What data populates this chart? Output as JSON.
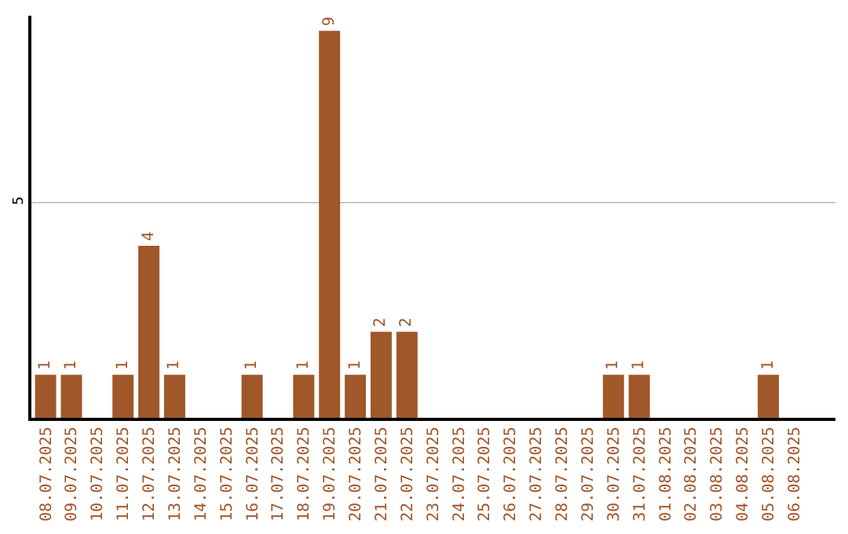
{
  "chart_data": {
    "type": "bar",
    "categories": [
      "08.07.2025",
      "09.07.2025",
      "10.07.2025",
      "11.07.2025",
      "12.07.2025",
      "13.07.2025",
      "14.07.2025",
      "15.07.2025",
      "16.07.2025",
      "17.07.2025",
      "18.07.2025",
      "19.07.2025",
      "20.07.2025",
      "21.07.2025",
      "22.07.2025",
      "23.07.2025",
      "24.07.2025",
      "25.07.2025",
      "26.07.2025",
      "27.07.2025",
      "28.07.2025",
      "29.07.2025",
      "30.07.2025",
      "31.07.2025",
      "01.08.2025",
      "02.08.2025",
      "03.08.2025",
      "04.08.2025",
      "05.08.2025",
      "06.08.2025"
    ],
    "values": [
      1,
      1,
      0,
      1,
      4,
      1,
      0,
      0,
      1,
      0,
      1,
      9,
      1,
      2,
      2,
      0,
      0,
      0,
      0,
      0,
      0,
      0,
      1,
      1,
      0,
      0,
      0,
      0,
      1,
      0
    ],
    "value_labels": [
      "1",
      "1",
      null,
      "1",
      "4",
      "1",
      null,
      null,
      "1",
      null,
      "1",
      "9",
      "1",
      "2",
      "2",
      null,
      null,
      null,
      null,
      null,
      null,
      null,
      "1",
      "1",
      null,
      null,
      null,
      null,
      "1",
      null
    ],
    "color": "#a0572a",
    "ylim": [
      0,
      9.35
    ],
    "yticks": [
      5
    ],
    "grid": "y",
    "legend": false
  }
}
